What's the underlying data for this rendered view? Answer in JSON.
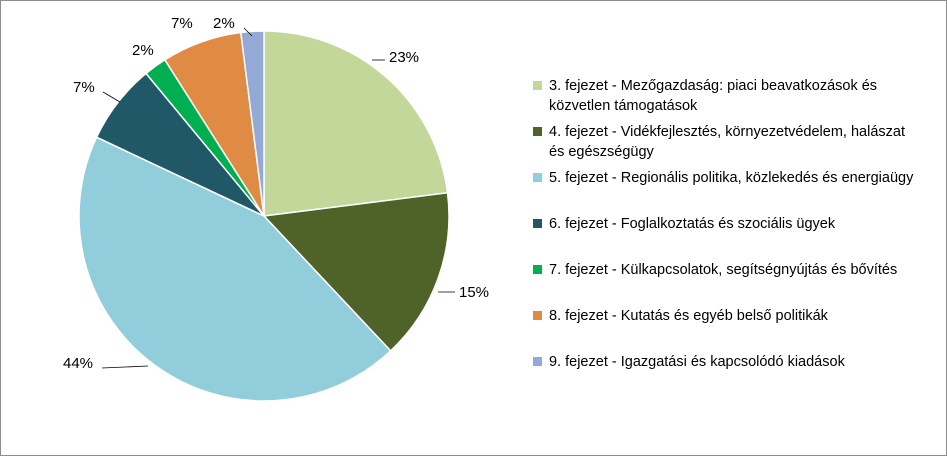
{
  "chart_data": {
    "type": "pie",
    "title": "",
    "start_angle_deg": 0,
    "direction": "clockwise",
    "legend_position": "right",
    "slices": [
      {
        "label": "3. fejezet - Mezőgazdaság: piaci beavatkozások és közvetlen támogatások",
        "value": 23,
        "data_label": "23%",
        "color": "#c4d79b"
      },
      {
        "label": "4. fejezet - Vidékfejlesztés, környezetvédelem, halászat és egészségügy",
        "value": 15,
        "data_label": "15%",
        "color": "#4f6228"
      },
      {
        "label": "5. fejezet - Regionális politika, közlekedés és energiaügy",
        "value": 44,
        "data_label": "44%",
        "color": "#92cddc"
      },
      {
        "label": "6. fejezet - Foglalkoztatás és szociális ügyek",
        "value": 7,
        "data_label": "7%",
        "color": "#215867"
      },
      {
        "label": "7. fejezet - Külkapcsolatok, segítségnyújtás és bővítés",
        "value": 2,
        "data_label": "2%",
        "color": "#00b050"
      },
      {
        "label": "8. fejezet - Kutatás és egyéb belső politikák",
        "value": 7,
        "data_label": "7%",
        "color": "#e08b44"
      },
      {
        "label": "9. fejezet - Igazgatási és kapcsolódó kiadások",
        "value": 2,
        "data_label": "2%",
        "color": "#95a9d7"
      }
    ]
  }
}
